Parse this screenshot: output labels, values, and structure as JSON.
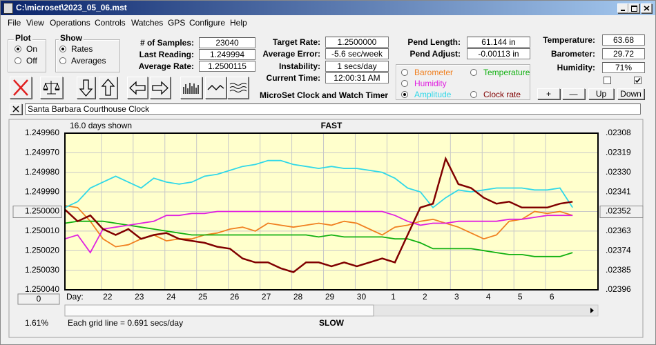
{
  "window": {
    "title": "C:\\microset\\2023_05_06.mst"
  },
  "menu": [
    "File",
    "View",
    "Operations",
    "Controls",
    "Watches",
    "GPS",
    "Configure",
    "Help"
  ],
  "plot_group": {
    "title": "Plot",
    "options": [
      "On",
      "Off"
    ],
    "selected": 0
  },
  "show_group": {
    "title": "Show",
    "options": [
      "Rates",
      "Averages"
    ],
    "selected": 0
  },
  "stats": [
    {
      "label": "# of Samples:",
      "value": "23040"
    },
    {
      "label": "Last Reading:",
      "value": "1.249994"
    },
    {
      "label": "Average Rate:",
      "value": "1.2500115"
    }
  ],
  "timing": [
    {
      "label": "Target Rate:",
      "value": "1.2500000"
    },
    {
      "label": "Average Error:",
      "value": "-5.6 sec/week"
    },
    {
      "label": "Instability:",
      "value": "1 secs/day"
    },
    {
      "label": "Current Time:",
      "value": "12:00:31 AM"
    }
  ],
  "pendulum": [
    {
      "label": "Pend Length:",
      "value": "61.144 in"
    },
    {
      "label": "Pend Adjust:",
      "value": "-0.00113 in"
    }
  ],
  "environment": [
    {
      "label": "Temperature:",
      "value": "63.68"
    },
    {
      "label": "Barometer:",
      "value": "29.72"
    },
    {
      "label": "Humidity:",
      "value": "71%"
    }
  ],
  "checkboxes": [
    false,
    true
  ],
  "buttons": [
    "+",
    "—",
    "Up",
    "Down"
  ],
  "app_title": "MicroSet Clock and Watch Timer",
  "clock_name": "Santa Barbara Courthouse Clock",
  "chart_data": {
    "type": "line",
    "top_left_note": "16.0 days shown",
    "top_label": "FAST",
    "bottom_label": "SLOW",
    "x_label": "Day:",
    "x_button": "0",
    "bottom_left_note": "1.61%",
    "grid_note": "Each grid line = 0.691 secs/day",
    "grid": true,
    "selected_series": 3,
    "y_button_tick": 4,
    "xlim": [
      0,
      16.8
    ],
    "xticks": [
      {
        "value": 1.15,
        "label": "22"
      },
      {
        "value": 2.15,
        "label": "23"
      },
      {
        "value": 3.15,
        "label": "24"
      },
      {
        "value": 4.15,
        "label": "25"
      },
      {
        "value": 5.15,
        "label": "26"
      },
      {
        "value": 6.15,
        "label": "27"
      },
      {
        "value": 7.15,
        "label": "28"
      },
      {
        "value": 8.15,
        "label": "29"
      },
      {
        "value": 9.15,
        "label": "30"
      },
      {
        "value": 10.15,
        "label": "1"
      },
      {
        "value": 11.15,
        "label": "2"
      },
      {
        "value": 12.15,
        "label": "3"
      },
      {
        "value": 13.15,
        "label": "4"
      },
      {
        "value": 14.15,
        "label": "5"
      },
      {
        "value": 15.15,
        "label": "6"
      }
    ],
    "ylim": [
      1.25004,
      1.24996
    ],
    "yticks": [
      {
        "value": 1.24996,
        "label": "1.249960"
      },
      {
        "value": 1.24997,
        "label": "1.249970"
      },
      {
        "value": 1.24998,
        "label": "1.249980"
      },
      {
        "value": 1.24999,
        "label": "1.249990"
      },
      {
        "value": 1.25,
        "label": "1.250000"
      },
      {
        "value": 1.25001,
        "label": "1.250010"
      },
      {
        "value": 1.25002,
        "label": "1.250020"
      },
      {
        "value": 1.25003,
        "label": "1.250030"
      },
      {
        "value": 1.25004,
        "label": "1.250040"
      }
    ],
    "y2lim": [
      0.02396,
      0.02308
    ],
    "y2ticks": [
      {
        "value": 0.02308,
        "label": ".02308"
      },
      {
        "value": 0.02319,
        "label": ".02319"
      },
      {
        "value": 0.0233,
        "label": ".02330"
      },
      {
        "value": 0.02341,
        "label": ".02341"
      },
      {
        "value": 0.02352,
        "label": ".02352"
      },
      {
        "value": 0.02363,
        "label": ".02363"
      },
      {
        "value": 0.02374,
        "label": ".02374"
      },
      {
        "value": 0.02385,
        "label": ".02385"
      },
      {
        "value": 0.02396,
        "label": ".02396"
      }
    ],
    "x": [
      0,
      0.4,
      0.8,
      1.2,
      1.6,
      2.0,
      2.4,
      2.8,
      3.2,
      3.6,
      4.0,
      4.4,
      4.8,
      5.2,
      5.6,
      6.0,
      6.4,
      6.8,
      7.2,
      7.6,
      8.0,
      8.4,
      8.8,
      9.2,
      9.6,
      10.0,
      10.4,
      10.8,
      11.2,
      11.6,
      12.0,
      12.4,
      12.8,
      13.2,
      13.6,
      14.0,
      14.4,
      14.8,
      15.2,
      15.6,
      16.0
    ],
    "series": [
      {
        "name": "Barometer",
        "color": "#f08020",
        "values": [
          1.249997,
          1.249998,
          1.250005,
          1.250014,
          1.250018,
          1.250017,
          1.250014,
          1.250012,
          1.250015,
          1.250014,
          1.250014,
          1.250012,
          1.250011,
          1.250009,
          1.250008,
          1.25001,
          1.250006,
          1.250007,
          1.250008,
          1.250007,
          1.250006,
          1.250007,
          1.250005,
          1.250006,
          1.250009,
          1.250012,
          1.250008,
          1.250007,
          1.250005,
          1.250004,
          1.250006,
          1.250008,
          1.250011,
          1.250014,
          1.250012,
          1.250005,
          1.250004,
          1.25,
          1.250001,
          1.25,
          1.250002
        ]
      },
      {
        "name": "Temperature",
        "color": "#10b010",
        "values": [
          1.250006,
          1.250005,
          1.250005,
          1.250005,
          1.250006,
          1.250007,
          1.250008,
          1.250009,
          1.25001,
          1.250011,
          1.250012,
          1.250012,
          1.250012,
          1.250012,
          1.250012,
          1.250012,
          1.250012,
          1.250012,
          1.250012,
          1.250012,
          1.250013,
          1.250012,
          1.250013,
          1.250013,
          1.250013,
          1.250013,
          1.250014,
          1.250014,
          1.250016,
          1.250019,
          1.250019,
          1.250019,
          1.250019,
          1.25002,
          1.250021,
          1.250022,
          1.250022,
          1.250023,
          1.250023,
          1.250023,
          1.250021
        ]
      },
      {
        "name": "Humidity",
        "color": "#e020e0",
        "values": [
          1.250014,
          1.250012,
          1.250021,
          1.250009,
          1.250008,
          1.250007,
          1.250006,
          1.250005,
          1.250002,
          1.250002,
          1.250001,
          1.250001,
          1.25,
          1.25,
          1.25,
          1.25,
          1.25,
          1.25,
          1.25,
          1.25,
          1.25,
          1.25,
          1.25,
          1.25,
          1.25,
          1.25,
          1.250002,
          1.250005,
          1.250007,
          1.250006,
          1.250006,
          1.250005,
          1.250005,
          1.250005,
          1.250005,
          1.250004,
          1.250004,
          1.250003,
          1.250002,
          1.250002,
          1.250002
        ]
      },
      {
        "name": "Amplitude",
        "color": "#30d8e8",
        "values": [
          1.249998,
          1.249995,
          1.249988,
          1.249985,
          1.249982,
          1.249985,
          1.249988,
          1.249983,
          1.249985,
          1.249986,
          1.249985,
          1.249982,
          1.249981,
          1.249979,
          1.249977,
          1.249976,
          1.249974,
          1.249974,
          1.249976,
          1.249977,
          1.249978,
          1.249977,
          1.249978,
          1.249978,
          1.249979,
          1.24998,
          1.249983,
          1.249988,
          1.24999,
          1.249998,
          1.249993,
          1.249989,
          1.24999,
          1.249989,
          1.249988,
          1.249988,
          1.249988,
          1.249989,
          1.249989,
          1.249988,
          1.249998
        ]
      },
      {
        "name": "Clock rate",
        "color": "#800000",
        "values": [
          1.249999,
          1.250005,
          1.250002,
          1.250009,
          1.250012,
          1.250009,
          1.250014,
          1.250012,
          1.250011,
          1.250014,
          1.250015,
          1.250016,
          1.250018,
          1.250019,
          1.250024,
          1.250026,
          1.250026,
          1.250029,
          1.250031,
          1.250026,
          1.250026,
          1.250028,
          1.250026,
          1.250028,
          1.250026,
          1.250024,
          1.250026,
          1.250012,
          1.249998,
          1.249996,
          1.249973,
          1.249986,
          1.249988,
          1.249993,
          1.249996,
          1.249995,
          1.249998,
          1.249998,
          1.249998,
          1.249996,
          1.249995
        ]
      }
    ]
  }
}
